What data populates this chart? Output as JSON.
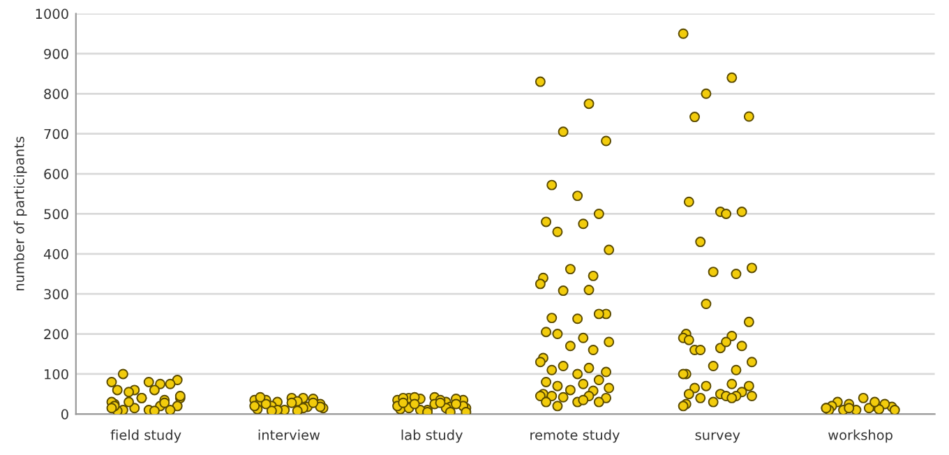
{
  "chart_data": {
    "type": "scatter",
    "ylabel": "number of participants",
    "categories": [
      "field study",
      "interview",
      "lab study",
      "remote study",
      "survey",
      "workshop"
    ],
    "ylim": [
      0,
      1000
    ],
    "yticks": [
      0,
      100,
      200,
      300,
      400,
      500,
      600,
      700,
      800,
      900,
      1000
    ],
    "grid": "y",
    "marker": "circle",
    "series": [
      {
        "color": "#f2cc0c",
        "x": [
          "field study",
          "field study",
          "field study",
          "field study",
          "field study",
          "field study",
          "field study",
          "field study",
          "field study",
          "field study",
          "field study",
          "field study",
          "field study",
          "field study",
          "field study",
          "field study",
          "field study",
          "field study",
          "field study",
          "field study",
          "field study",
          "field study",
          "field study",
          "field study",
          "field study",
          "field study",
          "field study",
          "field study",
          "field study",
          "interview",
          "interview",
          "interview",
          "interview",
          "interview",
          "interview",
          "interview",
          "interview",
          "interview",
          "interview",
          "interview",
          "interview",
          "interview",
          "interview",
          "interview",
          "interview",
          "interview",
          "interview",
          "interview",
          "interview",
          "interview",
          "interview",
          "interview",
          "interview",
          "lab study",
          "lab study",
          "lab study",
          "lab study",
          "lab study",
          "lab study",
          "lab study",
          "lab study",
          "lab study",
          "lab study",
          "lab study",
          "lab study",
          "lab study",
          "lab study",
          "lab study",
          "lab study",
          "lab study",
          "lab study",
          "lab study",
          "lab study",
          "lab study",
          "lab study",
          "lab study",
          "lab study",
          "lab study",
          "lab study",
          "lab study",
          "remote study",
          "remote study",
          "remote study",
          "remote study",
          "remote study",
          "remote study",
          "remote study",
          "remote study",
          "remote study",
          "remote study",
          "remote study",
          "remote study",
          "remote study",
          "remote study",
          "remote study",
          "remote study",
          "remote study",
          "remote study",
          "remote study",
          "remote study",
          "remote study",
          "remote study",
          "remote study",
          "remote study",
          "remote study",
          "remote study",
          "remote study",
          "remote study",
          "remote study",
          "remote study",
          "remote study",
          "remote study",
          "remote study",
          "remote study",
          "remote study",
          "remote study",
          "remote study",
          "remote study",
          "remote study",
          "remote study",
          "remote study",
          "remote study",
          "remote study",
          "remote study",
          "remote study",
          "remote study",
          "remote study",
          "remote study",
          "remote study",
          "remote study",
          "remote study",
          "remote study",
          "survey",
          "survey",
          "survey",
          "survey",
          "survey",
          "survey",
          "survey",
          "survey",
          "survey",
          "survey",
          "survey",
          "survey",
          "survey",
          "survey",
          "survey",
          "survey",
          "survey",
          "survey",
          "survey",
          "survey",
          "survey",
          "survey",
          "survey",
          "survey",
          "survey",
          "survey",
          "survey",
          "survey",
          "survey",
          "survey",
          "survey",
          "survey",
          "survey",
          "survey",
          "survey",
          "survey",
          "survey",
          "survey",
          "survey",
          "survey",
          "survey",
          "survey",
          "survey",
          "survey",
          "workshop",
          "workshop",
          "workshop",
          "workshop",
          "workshop",
          "workshop",
          "workshop",
          "workshop",
          "workshop",
          "workshop",
          "workshop",
          "workshop",
          "workshop",
          "workshop",
          "workshop",
          "workshop",
          "workshop"
        ],
        "values": [
          80,
          75,
          60,
          85,
          100,
          80,
          75,
          60,
          60,
          55,
          40,
          40,
          35,
          25,
          30,
          20,
          15,
          20,
          10,
          10,
          10,
          8,
          8,
          30,
          45,
          40,
          28,
          20,
          15,
          35,
          40,
          30,
          25,
          35,
          40,
          38,
          30,
          32,
          20,
          15,
          10,
          18,
          12,
          20,
          15,
          10,
          18,
          25,
          28,
          28,
          42,
          8,
          8,
          35,
          30,
          38,
          35,
          40,
          42,
          38,
          40,
          35,
          42,
          15,
          10,
          18,
          12,
          20,
          15,
          10,
          20,
          15,
          25,
          25,
          28,
          28,
          25,
          5,
          5,
          5,
          830,
          775,
          705,
          682,
          572,
          545,
          500,
          480,
          475,
          455,
          410,
          362,
          345,
          340,
          325,
          310,
          308,
          250,
          240,
          238,
          250,
          205,
          190,
          200,
          180,
          170,
          160,
          140,
          130,
          115,
          120,
          105,
          110,
          100,
          85,
          80,
          75,
          70,
          65,
          60,
          58,
          50,
          45,
          45,
          42,
          40,
          45,
          30,
          30,
          30,
          35,
          20,
          950,
          840,
          800,
          743,
          742,
          505,
          505,
          530,
          500,
          430,
          365,
          355,
          350,
          200,
          190,
          195,
          275,
          230,
          160,
          165,
          170,
          185,
          180,
          160,
          130,
          120,
          110,
          100,
          100,
          75,
          70,
          70,
          65,
          50,
          55,
          50,
          45,
          40,
          45,
          30,
          45,
          25,
          20,
          40,
          15,
          20,
          25,
          18,
          30,
          40,
          25,
          20,
          15,
          10,
          10,
          10,
          12,
          10,
          15,
          30,
          15
        ]
      }
    ]
  }
}
